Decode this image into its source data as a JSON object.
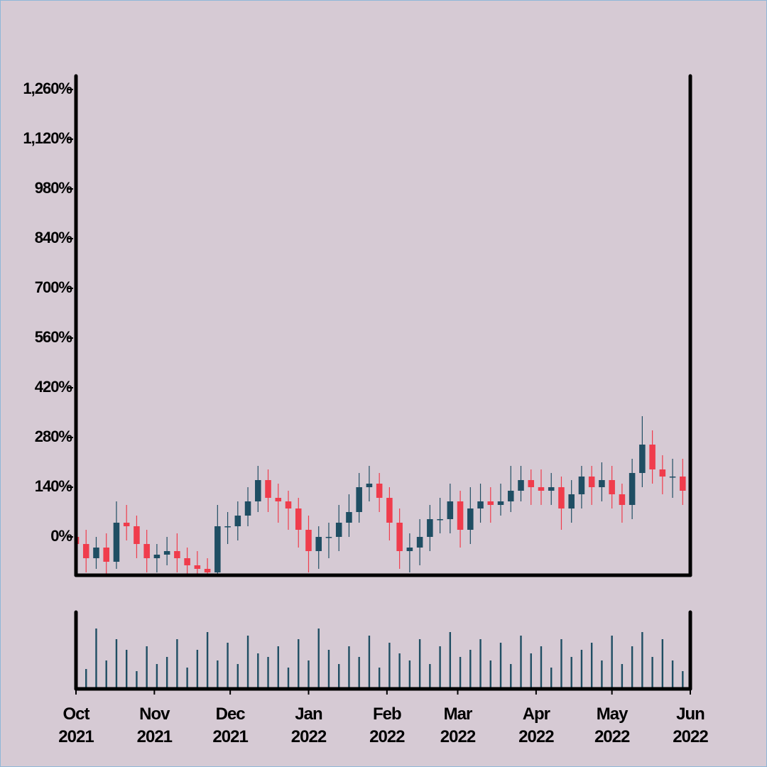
{
  "chart_data": {
    "type": "candlestick",
    "x": [
      "2021-10-01",
      "2021-10-05",
      "2021-10-09",
      "2021-10-13",
      "2021-10-17",
      "2021-10-21",
      "2021-10-25",
      "2021-10-29",
      "2021-11-02",
      "2021-11-06",
      "2021-11-10",
      "2021-11-14",
      "2021-11-18",
      "2021-11-22",
      "2021-11-26",
      "2021-11-30",
      "2021-12-04",
      "2021-12-08",
      "2021-12-12",
      "2021-12-16",
      "2021-12-20",
      "2021-12-24",
      "2021-12-28",
      "2022-01-01",
      "2022-01-05",
      "2022-01-09",
      "2022-01-13",
      "2022-01-17",
      "2022-01-21",
      "2022-01-25",
      "2022-01-29",
      "2022-02-02",
      "2022-02-06",
      "2022-02-10",
      "2022-02-14",
      "2022-02-18",
      "2022-02-22",
      "2022-02-26",
      "2022-03-02",
      "2022-03-06",
      "2022-03-10",
      "2022-03-14",
      "2022-03-18",
      "2022-03-22",
      "2022-03-26",
      "2022-03-30",
      "2022-04-03",
      "2022-04-07",
      "2022-04-11",
      "2022-04-15",
      "2022-04-19",
      "2022-04-23",
      "2022-04-27",
      "2022-05-01",
      "2022-05-05",
      "2022-05-09",
      "2022-05-13",
      "2022-05-17",
      "2022-05-21",
      "2022-05-25",
      "2022-05-29"
    ],
    "open": [
      0,
      -20,
      -60,
      -30,
      -70,
      40,
      30,
      -20,
      -60,
      -50,
      -40,
      -60,
      -80,
      -90,
      -100,
      30,
      30,
      60,
      100,
      160,
      110,
      100,
      80,
      20,
      -40,
      0,
      0,
      40,
      70,
      140,
      150,
      110,
      40,
      -40,
      -30,
      0,
      50,
      50,
      100,
      20,
      80,
      100,
      90,
      100,
      130,
      160,
      140,
      130,
      140,
      80,
      120,
      170,
      140,
      160,
      120,
      90,
      180,
      260,
      190,
      170,
      170
    ],
    "high": [
      30,
      20,
      0,
      10,
      100,
      90,
      60,
      20,
      -20,
      0,
      10,
      -30,
      -40,
      -60,
      90,
      70,
      100,
      140,
      200,
      190,
      150,
      130,
      110,
      60,
      30,
      40,
      90,
      120,
      180,
      200,
      180,
      140,
      80,
      10,
      50,
      90,
      110,
      150,
      130,
      140,
      150,
      140,
      150,
      200,
      200,
      190,
      190,
      180,
      170,
      160,
      200,
      200,
      210,
      200,
      150,
      220,
      340,
      300,
      230,
      220,
      220
    ],
    "low": [
      -60,
      -100,
      -90,
      -110,
      -90,
      -10,
      -60,
      -100,
      -100,
      -80,
      -100,
      -110,
      -110,
      -110,
      -110,
      -20,
      -10,
      30,
      70,
      70,
      40,
      20,
      -30,
      -100,
      -90,
      -60,
      -40,
      0,
      40,
      100,
      70,
      -10,
      -90,
      -100,
      -80,
      -40,
      10,
      10,
      -30,
      -20,
      40,
      40,
      60,
      70,
      100,
      90,
      90,
      90,
      20,
      40,
      80,
      90,
      100,
      80,
      40,
      50,
      140,
      150,
      120,
      110,
      90
    ],
    "close": [
      -20,
      -60,
      -30,
      -70,
      40,
      30,
      -20,
      -60,
      -50,
      -40,
      -60,
      -80,
      -90,
      -100,
      30,
      30,
      60,
      100,
      160,
      110,
      100,
      80,
      20,
      -40,
      0,
      0,
      40,
      70,
      140,
      150,
      110,
      40,
      -40,
      -30,
      0,
      50,
      50,
      100,
      20,
      80,
      100,
      90,
      100,
      130,
      160,
      140,
      130,
      140,
      80,
      120,
      170,
      140,
      160,
      120,
      90,
      180,
      260,
      190,
      170,
      170,
      130
    ],
    "volume": [
      62,
      28,
      85,
      40,
      70,
      55,
      25,
      60,
      35,
      45,
      70,
      30,
      55,
      80,
      40,
      65,
      35,
      75,
      50,
      45,
      60,
      30,
      70,
      40,
      85,
      55,
      35,
      60,
      45,
      75,
      30,
      65,
      50,
      40,
      70,
      35,
      60,
      80,
      45,
      55,
      70,
      40,
      65,
      35,
      75,
      50,
      60,
      30,
      70,
      45,
      55,
      65,
      40,
      75,
      35,
      60,
      80,
      45,
      70,
      40,
      25
    ],
    "up_color": "#1f4e63",
    "down_color": "#f03c4c",
    "volume_color": "#1f4e63",
    "xlim": [
      "2021-10-01",
      "2022-06-01"
    ],
    "xticks": [
      {
        "value": "2021-10-01",
        "label": "Oct 2021"
      },
      {
        "value": "2021-11-01",
        "label": "Nov 2021"
      },
      {
        "value": "2021-12-01",
        "label": "Dec 2021"
      },
      {
        "value": "2022-01-01",
        "label": "Jan 2022"
      },
      {
        "value": "2022-02-01",
        "label": "Feb 2022"
      },
      {
        "value": "2022-03-01",
        "label": "Mar 2022"
      },
      {
        "value": "2022-04-01",
        "label": "Apr 2022"
      },
      {
        "value": "2022-05-01",
        "label": "May 2022"
      },
      {
        "value": "2022-06-01",
        "label": "Jun 2022"
      }
    ],
    "ylim": [
      -108,
      1298
    ],
    "yticks": [
      {
        "value": 0,
        "label": "0%"
      },
      {
        "value": 140,
        "label": "140%"
      },
      {
        "value": 280,
        "label": "280%"
      },
      {
        "value": 420,
        "label": "420%"
      },
      {
        "value": 560,
        "label": "560%"
      },
      {
        "value": 700,
        "label": "700%"
      },
      {
        "value": 840,
        "label": "840%"
      },
      {
        "value": 980,
        "label": "980%"
      },
      {
        "value": 1120,
        "label": "1,120%"
      },
      {
        "value": 1260,
        "label": "1,260%"
      }
    ],
    "volume_ylim": [
      0,
      100
    ]
  }
}
